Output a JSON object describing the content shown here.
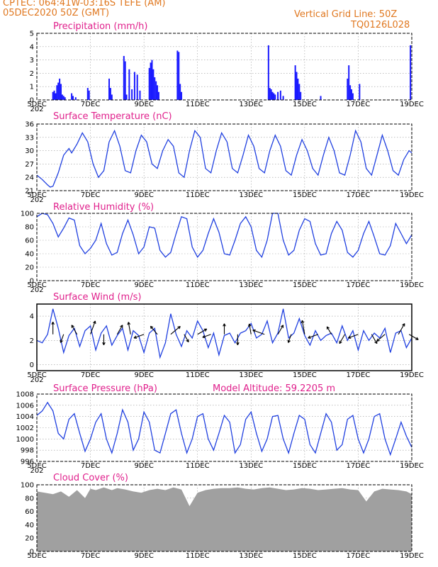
{
  "header": {
    "line1": "CPTEC:   064:41W-03:16S   TEFE (AM)",
    "line2": "05DEC2020 50Z (GMT)",
    "grid_label": "Vertical Grid Line: 50Z",
    "model": "TQ0126L028"
  },
  "x_axis": {
    "ticks": [
      "5DEC",
      "7DEC",
      "9DEC",
      "11DEC",
      "13DEC",
      "15DEC",
      "17DEC",
      "19DEC"
    ],
    "start_label_clip": "202"
  },
  "chart_data": [
    {
      "type": "bar",
      "title": "Precipitation (mm/h)",
      "ylim": [
        0,
        5
      ],
      "yticks": [
        "0",
        "1",
        "2",
        "3",
        "4",
        "5"
      ],
      "x_unit": "days since 5DEC 00Z",
      "color": "#1a1aff",
      "x": [
        0.6,
        0.65,
        0.7,
        0.75,
        0.8,
        0.85,
        0.9,
        0.95,
        1.0,
        1.05,
        1.3,
        1.35,
        1.45,
        1.9,
        1.95,
        2.7,
        2.75,
        2.8,
        3.25,
        3.3,
        3.35,
        3.45,
        3.55,
        3.65,
        3.75,
        3.85,
        4.2,
        4.25,
        4.3,
        4.35,
        4.4,
        4.45,
        4.5,
        4.55,
        5.25,
        5.3,
        5.35,
        5.4,
        8.65,
        8.7,
        8.75,
        8.8,
        8.85,
        8.9,
        9.0,
        9.1,
        9.2,
        9.65,
        9.7,
        9.75,
        9.8,
        9.85,
        10.6,
        11.6,
        11.65,
        11.7,
        11.75,
        11.8,
        12.05,
        13.95
      ],
      "values": [
        0.6,
        0.7,
        0.5,
        1.1,
        1.3,
        1.6,
        1.2,
        0.4,
        0.3,
        0.2,
        0.5,
        0.3,
        0.2,
        0.9,
        0.7,
        1.6,
        0.9,
        0.4,
        3.3,
        2.9,
        0.4,
        2.3,
        0.8,
        2.1,
        1.9,
        0.7,
        2.4,
        2.8,
        3.0,
        2.3,
        1.7,
        1.4,
        1.1,
        0.6,
        3.7,
        3.6,
        1.2,
        0.6,
        4.1,
        0.9,
        0.8,
        0.6,
        0.5,
        0.4,
        0.6,
        0.7,
        0.3,
        2.6,
        2.1,
        1.6,
        1.2,
        0.6,
        0.3,
        1.6,
        2.6,
        1.1,
        0.8,
        0.5,
        1.2,
        4.1
      ]
    },
    {
      "type": "line",
      "title": "Surface Temperature (nC)",
      "ylim": [
        21,
        36
      ],
      "yticks": [
        "21",
        "24",
        "27",
        "30",
        "33",
        "36"
      ],
      "color": "#2040e0",
      "x": [
        0,
        0.2,
        0.4,
        0.5,
        0.6,
        0.8,
        1.0,
        1.2,
        1.3,
        1.5,
        1.7,
        1.9,
        2.1,
        2.3,
        2.5,
        2.7,
        2.9,
        3.1,
        3.3,
        3.5,
        3.7,
        3.9,
        4.1,
        4.3,
        4.5,
        4.7,
        4.9,
        5.1,
        5.3,
        5.5,
        5.7,
        5.9,
        6.1,
        6.3,
        6.5,
        6.7,
        6.9,
        7.1,
        7.3,
        7.5,
        7.7,
        7.9,
        8.1,
        8.3,
        8.5,
        8.7,
        8.9,
        9.1,
        9.3,
        9.5,
        9.7,
        9.9,
        10.1,
        10.3,
        10.5,
        10.7,
        10.9,
        11.1,
        11.3,
        11.5,
        11.7,
        11.9,
        12.1,
        12.3,
        12.5,
        12.7,
        12.9,
        13.1,
        13.3,
        13.5,
        13.7,
        13.9,
        14.0
      ],
      "values": [
        24.5,
        23.5,
        22.3,
        21.8,
        22.0,
        25,
        29,
        30.5,
        29.5,
        31.5,
        34,
        32,
        27,
        24,
        25.5,
        32,
        34.5,
        31,
        25.5,
        25,
        30,
        33.5,
        32,
        27,
        26,
        30,
        32.5,
        31,
        25,
        24,
        30,
        34.5,
        33,
        26,
        25,
        30,
        34,
        32,
        26,
        25,
        29,
        33.5,
        31,
        26,
        25,
        30,
        33.5,
        31,
        25.5,
        24.5,
        29,
        32.5,
        30,
        26,
        24.5,
        29,
        33,
        30,
        25,
        24.5,
        29,
        34.5,
        32,
        26,
        24.5,
        29,
        33.5,
        30,
        25.5,
        24.5,
        28,
        30,
        29.5
      ]
    },
    {
      "type": "line",
      "title": "Relative Humidity (%)",
      "ylim": [
        0,
        100
      ],
      "yticks": [
        "0",
        "20",
        "40",
        "60",
        "80",
        "100"
      ],
      "color": "#2040e0",
      "x": [
        0,
        0.2,
        0.4,
        0.6,
        0.8,
        1.0,
        1.2,
        1.4,
        1.6,
        1.8,
        2.0,
        2.2,
        2.4,
        2.6,
        2.8,
        3.0,
        3.2,
        3.4,
        3.6,
        3.8,
        4.0,
        4.2,
        4.4,
        4.6,
        4.8,
        5.0,
        5.2,
        5.4,
        5.6,
        5.8,
        6.0,
        6.2,
        6.4,
        6.6,
        6.8,
        7.0,
        7.2,
        7.4,
        7.6,
        7.8,
        8.0,
        8.2,
        8.4,
        8.6,
        8.8,
        9.0,
        9.2,
        9.4,
        9.6,
        9.8,
        10.0,
        10.2,
        10.4,
        10.6,
        10.8,
        11.0,
        11.2,
        11.4,
        11.6,
        11.8,
        12.0,
        12.2,
        12.4,
        12.6,
        12.8,
        13.0,
        13.2,
        13.4,
        13.6,
        13.8,
        14.0
      ],
      "values": [
        95,
        100,
        98,
        85,
        65,
        78,
        93,
        90,
        52,
        40,
        48,
        60,
        85,
        55,
        38,
        42,
        70,
        90,
        68,
        40,
        50,
        80,
        78,
        45,
        35,
        42,
        70,
        95,
        92,
        50,
        35,
        45,
        70,
        92,
        72,
        40,
        38,
        60,
        85,
        95,
        80,
        45,
        35,
        60,
        100,
        100,
        60,
        38,
        45,
        75,
        92,
        88,
        55,
        38,
        40,
        70,
        88,
        75,
        42,
        35,
        45,
        70,
        88,
        65,
        40,
        38,
        52,
        85,
        70,
        55,
        68
      ]
    },
    {
      "type": "line",
      "title": "Surface Wind (m/s)",
      "ylim": [
        -0.5,
        5
      ],
      "yticks": [
        "0",
        "2",
        "4"
      ],
      "color": "#2040e0",
      "x": [
        0,
        0.2,
        0.4,
        0.6,
        0.8,
        1.0,
        1.2,
        1.4,
        1.6,
        1.8,
        2.0,
        2.2,
        2.4,
        2.6,
        2.8,
        3.0,
        3.2,
        3.4,
        3.6,
        3.8,
        4.0,
        4.2,
        4.4,
        4.6,
        4.8,
        5.0,
        5.2,
        5.4,
        5.6,
        5.8,
        6.0,
        6.2,
        6.4,
        6.6,
        6.8,
        7.0,
        7.2,
        7.4,
        7.6,
        7.8,
        8.0,
        8.2,
        8.4,
        8.6,
        8.8,
        9.0,
        9.2,
        9.4,
        9.6,
        9.8,
        10.0,
        10.2,
        10.4,
        10.6,
        10.8,
        11.0,
        11.2,
        11.4,
        11.6,
        11.8,
        12.0,
        12.2,
        12.4,
        12.6,
        12.8,
        13.0,
        13.2,
        13.4,
        13.6,
        13.8,
        14.0
      ],
      "values": [
        2.0,
        1.8,
        2.5,
        4.6,
        3.0,
        1.0,
        2.4,
        3.0,
        1.5,
        2.8,
        3.2,
        1.2,
        2.6,
        3.2,
        1.6,
        2.4,
        3.0,
        1.2,
        2.8,
        2.4,
        1.0,
        2.6,
        3.0,
        0.6,
        1.8,
        4.2,
        2.5,
        1.5,
        2.8,
        2.2,
        3.6,
        2.8,
        1.4,
        2.6,
        0.8,
        2.4,
        2.6,
        1.8,
        2.6,
        2.8,
        3.4,
        2.2,
        2.5,
        3.6,
        1.8,
        2.6,
        4.6,
        2.2,
        2.6,
        3.8,
        2.4,
        1.6,
        2.8,
        2.0,
        2.4,
        2.6,
        1.8,
        3.2,
        2.0,
        2.8,
        1.2,
        2.8,
        2.0,
        2.6,
        2.2,
        3.0,
        1.0,
        2.6,
        2.8,
        1.4,
        2.2
      ]
    },
    {
      "type": "line",
      "title": "Surface Pressure (hPa)",
      "subtitle": "Model Altitude: 59.2205 m",
      "ylim": [
        996,
        1008
      ],
      "yticks": [
        "996",
        "998",
        "1000",
        "1002",
        "1004",
        "1006",
        "1008"
      ],
      "color": "#2040e0",
      "x": [
        0,
        0.2,
        0.4,
        0.6,
        0.8,
        1.0,
        1.2,
        1.4,
        1.6,
        1.8,
        2.0,
        2.2,
        2.4,
        2.6,
        2.8,
        3.0,
        3.2,
        3.4,
        3.6,
        3.8,
        4.0,
        4.2,
        4.4,
        4.6,
        4.8,
        5.0,
        5.2,
        5.4,
        5.6,
        5.8,
        6.0,
        6.2,
        6.4,
        6.6,
        6.8,
        7.0,
        7.2,
        7.4,
        7.6,
        7.8,
        8.0,
        8.2,
        8.4,
        8.6,
        8.8,
        9.0,
        9.2,
        9.4,
        9.6,
        9.8,
        10.0,
        10.2,
        10.4,
        10.6,
        10.8,
        11.0,
        11.2,
        11.4,
        11.6,
        11.8,
        12.0,
        12.2,
        12.4,
        12.6,
        12.8,
        13.0,
        13.2,
        13.4,
        13.6,
        13.8,
        14.0
      ],
      "values": [
        1004.2,
        1005,
        1006.5,
        1005,
        1001,
        1000,
        1003.5,
        1004.5,
        1001,
        997.8,
        1000,
        1003,
        1004.5,
        1000,
        997.5,
        1001,
        1005.2,
        1003,
        998,
        1000,
        1004.8,
        1003,
        998,
        997.5,
        1001,
        1004.5,
        1005.2,
        1001,
        997.5,
        1000,
        1004,
        1004.5,
        1000,
        998,
        1001,
        1004.2,
        1003,
        997.5,
        999,
        1003.5,
        1004.8,
        1001,
        997.8,
        1000,
        1004,
        1004.2,
        1000,
        997.5,
        1001,
        1004.2,
        1003.5,
        999,
        997.5,
        1001,
        1004.5,
        1003,
        998,
        999,
        1003.5,
        1004.2,
        1000,
        997.5,
        1000,
        1004,
        1004.5,
        1000,
        997.2,
        1000,
        1003,
        1000.5,
        998.5
      ]
    },
    {
      "type": "area",
      "title": "Cloud Cover (%)",
      "ylim": [
        0,
        100
      ],
      "yticks": [
        "0",
        "20",
        "40",
        "60",
        "80",
        "100"
      ],
      "color": "#a0a0a0",
      "x": [
        0,
        0.3,
        0.6,
        0.9,
        1.2,
        1.5,
        1.8,
        2.0,
        2.2,
        2.5,
        2.8,
        3.0,
        3.3,
        3.6,
        3.9,
        4.2,
        4.5,
        4.8,
        5.1,
        5.4,
        5.7,
        6.0,
        6.3,
        6.6,
        6.9,
        7.2,
        7.5,
        7.8,
        8.1,
        8.4,
        8.7,
        9.0,
        9.3,
        9.6,
        9.9,
        10.2,
        10.5,
        10.8,
        11.1,
        11.4,
        11.7,
        12.0,
        12.3,
        12.6,
        12.9,
        13.2,
        13.5,
        13.8,
        14.0
      ],
      "values": [
        90,
        88,
        86,
        90,
        82,
        92,
        80,
        94,
        92,
        96,
        92,
        95,
        93,
        90,
        88,
        92,
        94,
        92,
        96,
        93,
        68,
        88,
        92,
        94,
        95,
        95,
        96,
        94,
        93,
        95,
        96,
        94,
        92,
        93,
        95,
        94,
        92,
        93,
        94,
        95,
        93,
        92,
        75,
        90,
        94,
        93,
        92,
        90,
        86
      ]
    }
  ],
  "wind_vectors": {
    "x": [
      0.6,
      1.0,
      1.5,
      2.0,
      2.5,
      3.0,
      3.5,
      4.0,
      4.5,
      5.0,
      5.5,
      6.0,
      6.5,
      7.0,
      7.5,
      8.0,
      8.5,
      9.0,
      9.5,
      10.0,
      10.5,
      11.0,
      11.5,
      12.0,
      12.5,
      13.0,
      13.5,
      13.9
    ],
    "angles_deg": [
      90,
      250,
      120,
      70,
      270,
      60,
      100,
      200,
      130,
      40,
      300,
      30,
      200,
      90,
      270,
      100,
      160,
      60,
      250,
      100,
      200,
      120,
      240,
      200,
      300,
      220,
      60,
      330
    ],
    "speeds": [
      3.5,
      2.5,
      3,
      4,
      3,
      3,
      3.5,
      3,
      3,
      3.5,
      2.5,
      3,
      2.5,
      3,
      3,
      3,
      3.5,
      3,
      2.5,
      4,
      3,
      2.5,
      3,
      3,
      3,
      3,
      3.5,
      3
    ]
  }
}
